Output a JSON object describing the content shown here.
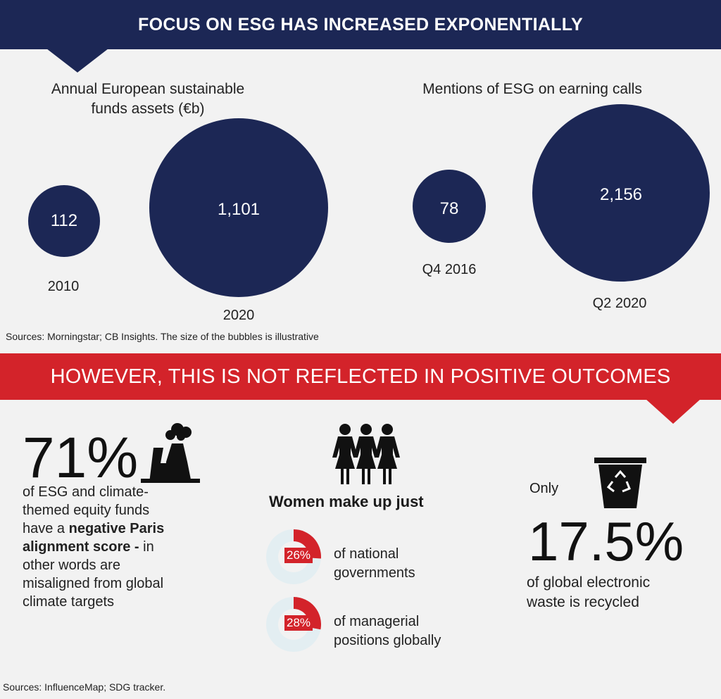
{
  "header": {
    "title": "FOCUS ON ESG HAS INCREASED EXPONENTIALLY"
  },
  "left_chart": {
    "subtitle_line1": "Annual European sustainable",
    "subtitle_line2": "funds assets (€b)",
    "bubbles": [
      {
        "value": "112",
        "label": "2010"
      },
      {
        "value": "1,101",
        "label": "2020"
      }
    ]
  },
  "right_chart": {
    "subtitle": "Mentions of ESG on earning calls",
    "bubbles": [
      {
        "value": "78",
        "label": "Q4 2016"
      },
      {
        "value": "2,156",
        "label": "Q2 2020"
      }
    ]
  },
  "sources_top": "Sources: Morningstar; CB Insights. The size of the bubbles is illustrative",
  "banner2": {
    "title": "HOWEVER, THIS IS NOT REFLECTED IN POSITIVE OUTCOMES"
  },
  "stat1": {
    "percent": "71%",
    "line1": "of ESG and climate-",
    "line2": "themed equity funds",
    "line3": "have a ",
    "line3_bold": "negative Paris",
    "line4_bold": "alignment score -",
    "line4": " in",
    "line5": "other words are",
    "line6": "misaligned from global",
    "line7": "climate targets",
    "icon": "factory-icon"
  },
  "stat2": {
    "heading": "Women make up just",
    "icon": "women-group-icon",
    "items": [
      {
        "percent": "26%",
        "value": 0.26,
        "line1": "of national",
        "line2": "governments"
      },
      {
        "percent": "28%",
        "value": 0.28,
        "line1": "of managerial",
        "line2": "positions globally"
      }
    ]
  },
  "stat3": {
    "only": "Only",
    "percent": "17.5%",
    "line1": "of global electronic",
    "line2": "waste is recycled",
    "icon": "recycle-bin-icon"
  },
  "sources_bottom": "Sources: InfluenceMap; SDG tracker.",
  "colors": {
    "navy": "#1c2755",
    "red": "#d3232a",
    "background": "#f2f2f2"
  }
}
